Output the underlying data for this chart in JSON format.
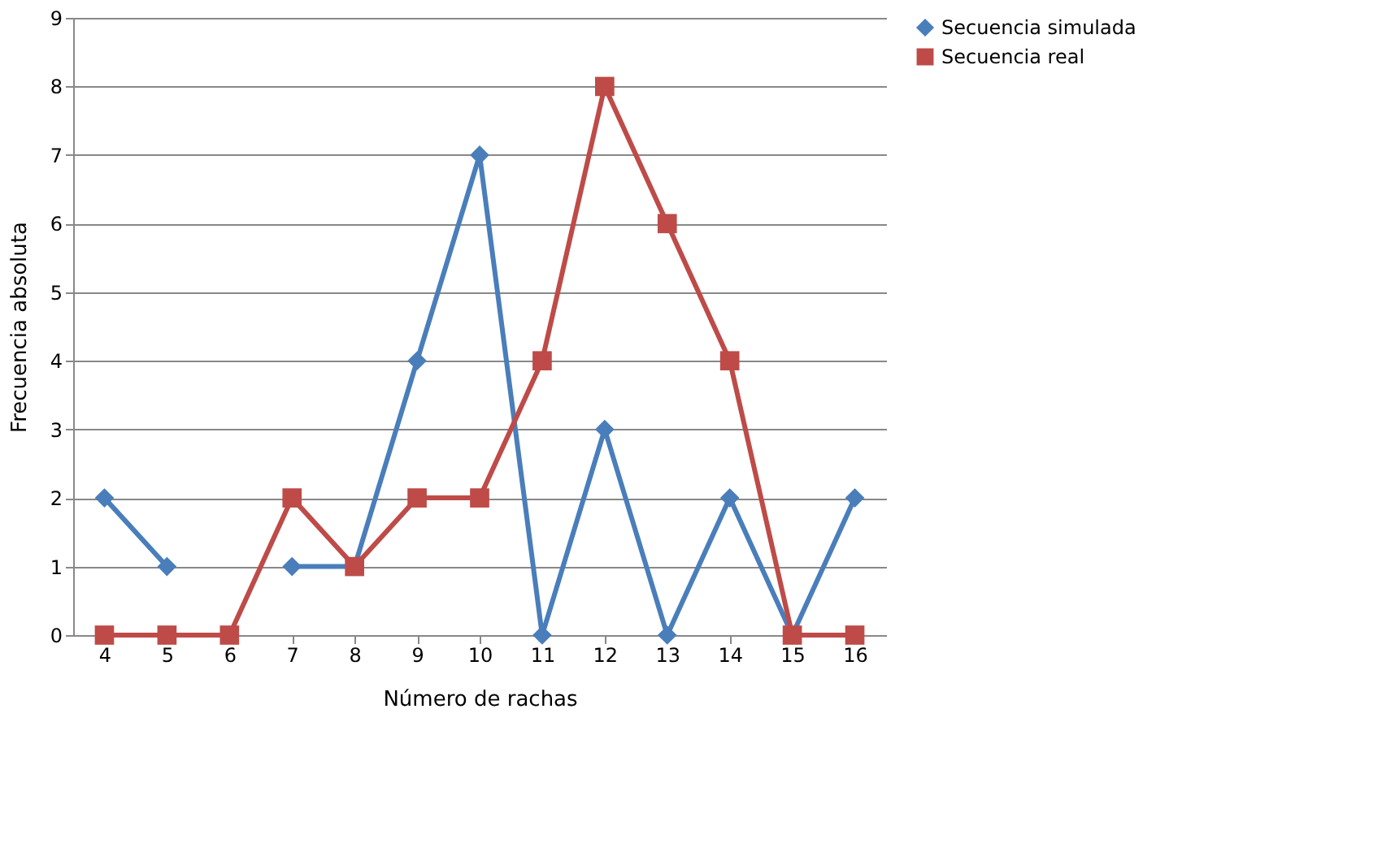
{
  "chart_data": {
    "type": "line",
    "xlabel": "Número de rachas",
    "ylabel": "Frecuencia absoluta",
    "categories": [
      "4",
      "5",
      "6",
      "7",
      "8",
      "9",
      "10",
      "11",
      "12",
      "13",
      "14",
      "15",
      "16"
    ],
    "series": [
      {
        "name": "Secuencia simulada",
        "color": "#4a7ebb",
        "marker": "diamond",
        "values": [
          2,
          1,
          null,
          1,
          1,
          4,
          7,
          0,
          3,
          0,
          2,
          0,
          2
        ]
      },
      {
        "name": "Secuencia real",
        "color": "#be4b48",
        "marker": "square",
        "values": [
          0,
          0,
          0,
          2,
          1,
          2,
          2,
          4,
          8,
          6,
          4,
          0,
          0
        ]
      }
    ],
    "ylim": [
      0,
      9
    ],
    "yticks": [
      0,
      1,
      2,
      3,
      4,
      5,
      6,
      7,
      8,
      9
    ],
    "grid": "y",
    "legend": "right",
    "line_style": "solid"
  }
}
